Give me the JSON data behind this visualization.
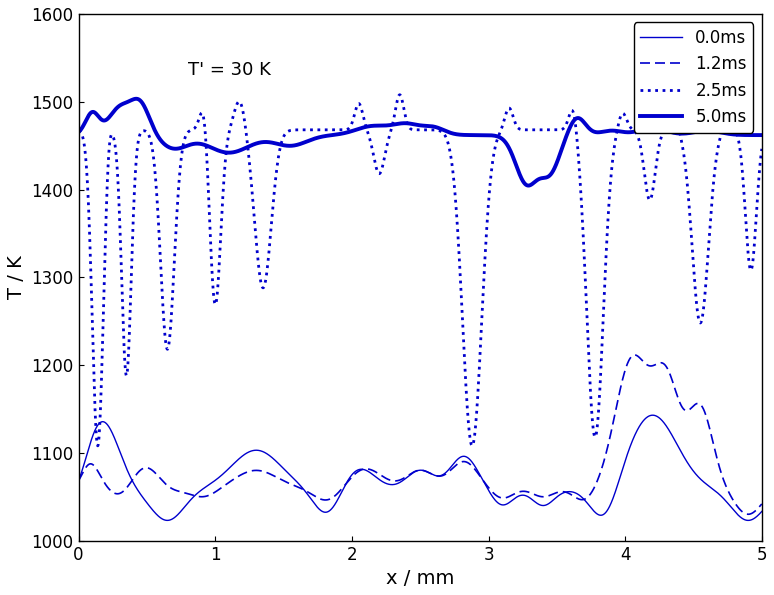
{
  "title": "",
  "xlabel": "x / mm",
  "ylabel": "T / K",
  "annotation": "T' = 30 K",
  "xlim": [
    0,
    5
  ],
  "ylim": [
    1000,
    1600
  ],
  "xticks": [
    0,
    1,
    2,
    3,
    4,
    5
  ],
  "yticks": [
    1000,
    1100,
    1200,
    1300,
    1400,
    1500,
    1600
  ],
  "line_color": "#0000cd",
  "legend_labels": [
    "0.0ms",
    "1.2ms",
    "2.5ms",
    "5.0ms"
  ],
  "background_color": "#ffffff",
  "n_points": 3000
}
